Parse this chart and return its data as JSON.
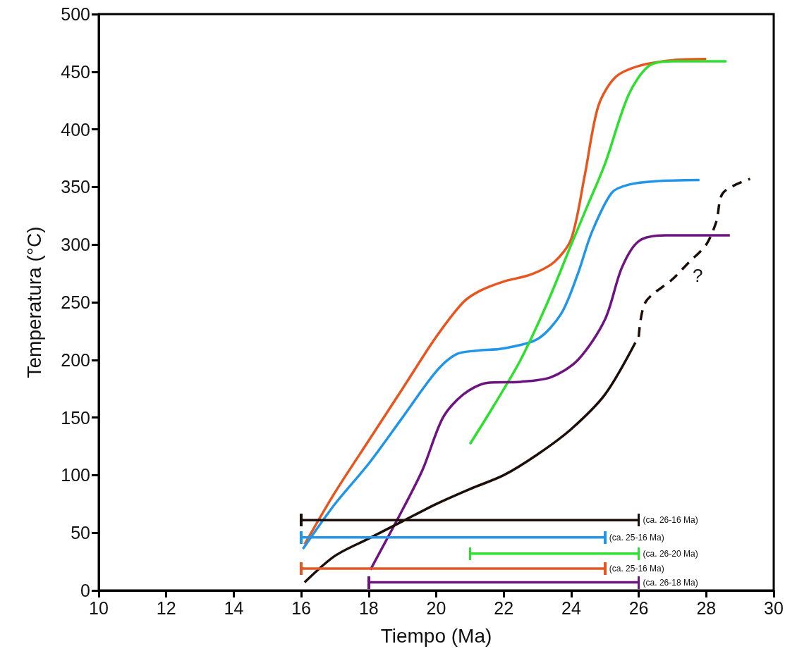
{
  "chart_data": {
    "type": "line",
    "xlabel": "Tiempo (Ma)",
    "ylabel": "Temperatura (°C)",
    "xlim": [
      10,
      30
    ],
    "xticks": [
      10,
      12,
      14,
      16,
      18,
      20,
      22,
      24,
      26,
      28,
      30
    ],
    "ylim": [
      0,
      500
    ],
    "yticks": [
      0,
      50,
      100,
      150,
      200,
      250,
      300,
      350,
      400,
      450,
      500
    ],
    "grid": false,
    "marker": "none",
    "series": [
      {
        "color": "#e8561f",
        "x": [
          16.1,
          17,
          18,
          19,
          20,
          20.8,
          21.3,
          22,
          22.8,
          23.5,
          24,
          24.4,
          24.8,
          25.3,
          26,
          27,
          28
        ],
        "values": [
          40,
          85,
          130,
          175,
          220,
          250,
          260,
          268,
          274,
          285,
          305,
          360,
          420,
          445,
          455,
          460,
          461
        ]
      },
      {
        "color": "#2196e8",
        "x": [
          16.05,
          17,
          18,
          19,
          20,
          20.6,
          21.2,
          22,
          23,
          23.7,
          24.2,
          24.6,
          25.2,
          25.7,
          26.5,
          27.8
        ],
        "values": [
          36,
          75,
          110,
          150,
          190,
          205,
          208,
          210,
          218,
          240,
          275,
          310,
          345,
          352,
          355,
          356
        ]
      },
      {
        "color": "#2ee02e",
        "x": [
          21,
          21.7,
          22.5,
          23.3,
          24,
          24.5,
          25,
          25.7,
          26.3,
          27,
          28.6
        ],
        "values": [
          127,
          160,
          200,
          250,
          300,
          335,
          370,
          430,
          455,
          459,
          459
        ]
      },
      {
        "color": "#6e1480",
        "x": [
          18.05,
          19,
          19.6,
          20.2,
          20.8,
          21.5,
          22.5,
          23.4,
          24.2,
          25,
          25.5,
          26,
          26.8,
          28.7
        ],
        "values": [
          18,
          70,
          105,
          150,
          170,
          180,
          181,
          185,
          200,
          235,
          280,
          303,
          308,
          308
        ]
      },
      {
        "color": "#1c0f0a",
        "x": [
          16.1,
          17,
          18,
          19,
          20,
          21,
          22,
          23,
          24,
          25,
          25.9
        ],
        "values": [
          7,
          30,
          45,
          60,
          75,
          88,
          100,
          118,
          140,
          170,
          215
        ]
      },
      {
        "color": "#1c0f0a",
        "line_style": "dashed",
        "x": [
          26,
          26.2,
          27,
          27.5,
          28,
          28.3,
          28.5,
          29.3
        ],
        "values": [
          220,
          250,
          270,
          285,
          300,
          320,
          345,
          357
        ]
      },
      {
        "color": "#1c0f0a",
        "x": [
          16,
          26
        ],
        "values": [
          61,
          61
        ]
      },
      {
        "color": "#2196e8",
        "x": [
          16,
          25
        ],
        "values": [
          46,
          46
        ]
      },
      {
        "color": "#2ee02e",
        "x": [
          21,
          26
        ],
        "values": [
          32,
          32
        ]
      },
      {
        "color": "#e8561f",
        "x": [
          16,
          25
        ],
        "values": [
          19,
          19
        ]
      },
      {
        "color": "#6e1480",
        "x": [
          18,
          26
        ],
        "values": [
          7,
          7
        ]
      }
    ],
    "annotations": [
      "(ca. 26-16 Ma)",
      "(ca. 25-16 Ma)",
      "(ca. 26-20 Ma)",
      "(ca. 25-16 Ma)",
      "(ca. 26-18 Ma)",
      "?"
    ]
  }
}
